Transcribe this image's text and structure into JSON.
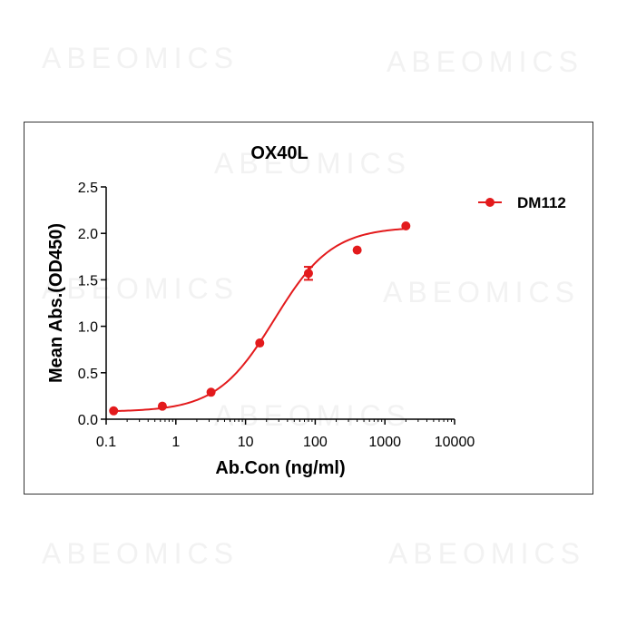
{
  "watermark": {
    "text": "ABEOMICS",
    "color": "#f2f2f2"
  },
  "chart_data": {
    "type": "scatter",
    "title": "OX40L",
    "xlabel": "Ab.Con (ng/ml)",
    "ylabel": "Mean Abs.(OD450)",
    "xscale": "log",
    "xlim": [
      0.1,
      10000
    ],
    "ylim": [
      0,
      2.5
    ],
    "xticks": [
      0.1,
      1,
      10,
      100,
      1000,
      10000
    ],
    "xtick_labels": [
      "0.1",
      "1",
      "10",
      "100",
      "1000",
      "10000"
    ],
    "yticks": [
      0,
      0.5,
      1.0,
      1.5,
      2.0,
      2.5
    ],
    "ytick_labels": [
      "0.0",
      "0.5",
      "1.0",
      "1.5",
      "2.0",
      "2.5"
    ],
    "grid": false,
    "legend_position": "top-right",
    "series": [
      {
        "name": "DM112",
        "color": "#e31a1c",
        "marker": "circle",
        "x": [
          0.128,
          0.64,
          3.2,
          16,
          80,
          400,
          2000
        ],
        "y": [
          0.09,
          0.14,
          0.29,
          0.82,
          1.57,
          1.82,
          2.08
        ],
        "y_error": [
          0,
          0,
          0,
          0,
          0.07,
          0,
          0
        ],
        "fit": "four-parameter-logistic"
      }
    ]
  }
}
